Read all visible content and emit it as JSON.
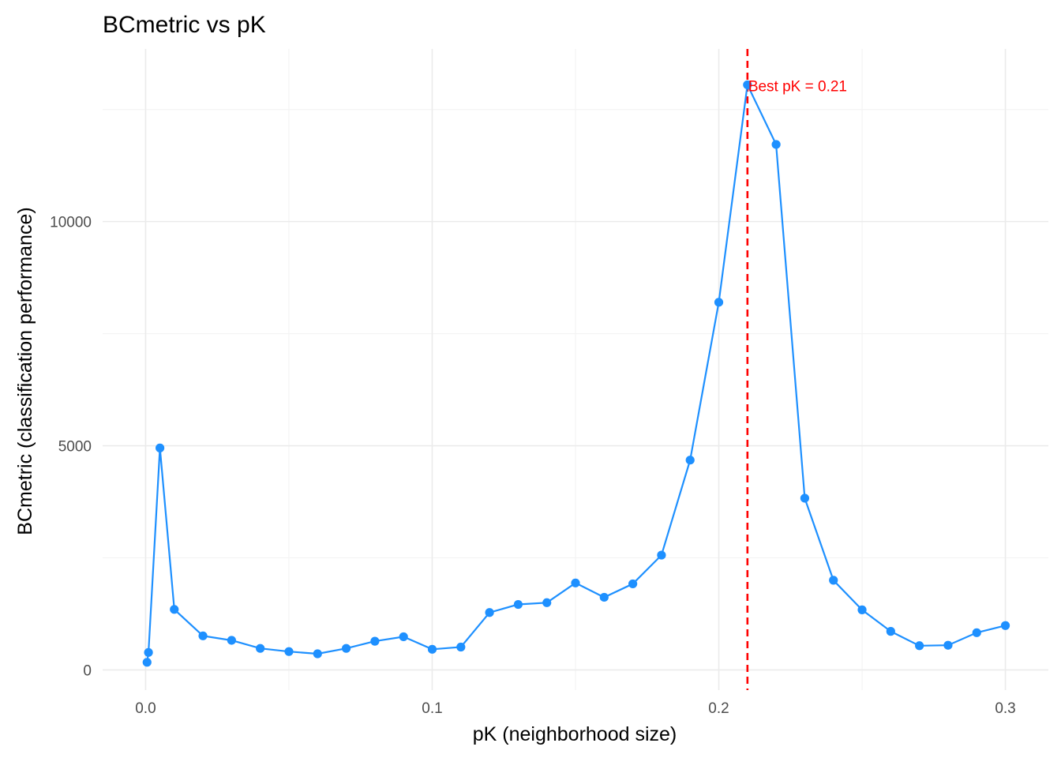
{
  "chart_data": {
    "type": "line",
    "title": "BCmetric vs pK",
    "xlabel": "pK (neighborhood size)",
    "ylabel": "BCmetric (classification performance)",
    "xlim": [
      -0.015,
      0.315
    ],
    "ylim": [
      -450,
      13850
    ],
    "x_ticks": [
      0.0,
      0.1,
      0.2,
      0.3
    ],
    "x_tick_labels": [
      "0.0",
      "0.1",
      "0.2",
      "0.3"
    ],
    "x_minor_ticks": [
      0.05,
      0.15,
      0.25
    ],
    "y_ticks": [
      0,
      5000,
      10000
    ],
    "y_tick_labels": [
      "0",
      "5000",
      "10000"
    ],
    "y_minor_ticks": [
      2500,
      7500,
      12500
    ],
    "grid": true,
    "series": [
      {
        "color": "#1E90FF",
        "x": [
          0.0005,
          0.001,
          0.005,
          0.01,
          0.02,
          0.03,
          0.04,
          0.05,
          0.06,
          0.07,
          0.08,
          0.09,
          0.1,
          0.11,
          0.12,
          0.13,
          0.14,
          0.15,
          0.16,
          0.17,
          0.18,
          0.19,
          0.2,
          0.21,
          0.22,
          0.23,
          0.24,
          0.25,
          0.26,
          0.27,
          0.28,
          0.29,
          0.3
        ],
        "y": [
          170,
          390,
          4950,
          1350,
          760,
          660,
          480,
          410,
          360,
          480,
          640,
          740,
          460,
          510,
          1280,
          1460,
          1500,
          1940,
          1620,
          1920,
          2560,
          4680,
          8200,
          13050,
          11720,
          3830,
          2000,
          1340,
          860,
          540,
          550,
          830,
          990
        ]
      }
    ],
    "vline": {
      "x": 0.21,
      "color": "#FF0000",
      "style": "dashed"
    },
    "annotation": {
      "text": "Best pK = 0.21",
      "x": 0.21,
      "y": 13050,
      "color": "#FF0000"
    }
  }
}
